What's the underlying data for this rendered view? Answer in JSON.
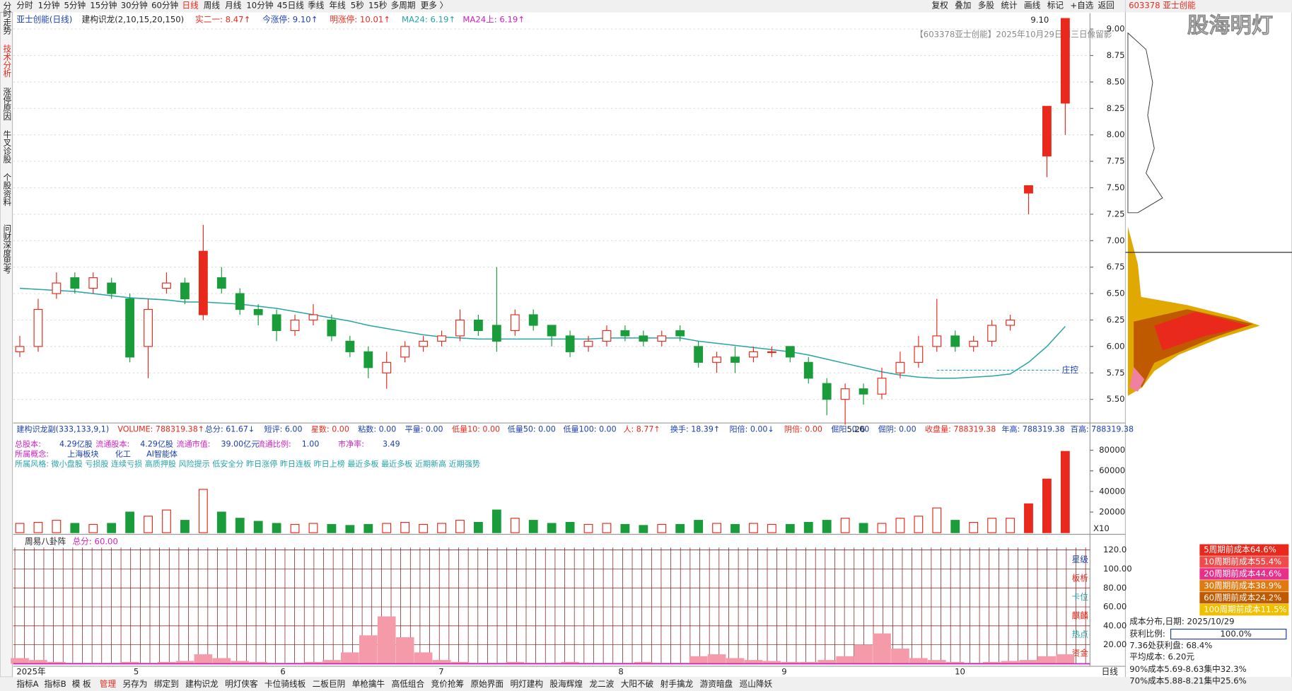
{
  "toolbar": [
    "分时",
    "1分钟",
    "5分钟",
    "15分钟",
    "30分钟",
    "60分钟",
    "日线",
    "周线",
    "月线",
    "10分钟",
    "45日线",
    "季线",
    "年线",
    "5秒",
    "15秒",
    "多周期",
    "更多 〉"
  ],
  "toolbar_right": [
    "复权",
    "叠加",
    "多股",
    "统计",
    "画线",
    "标记",
    "+自选",
    "返回"
  ],
  "stock": "603378 亚士创能",
  "brand": "股海明灯",
  "side_tabs": [
    "分时走势",
    "技术分析",
    "涨停原因",
    "牛叉诊股",
    "个股资料",
    "问财",
    "深度思考"
  ],
  "main_header": [
    "亚士创能(日线)",
    "建构识龙(2,10,15,20,150)",
    "实二一: 8.47↑",
    "今涨停: 9.10↑",
    "明涨停: 10.01↑",
    "MA24: 6.19↑",
    "MA24上: 6.19↑"
  ],
  "note": "【603378亚士创能】2025年10月29日周三日像留影",
  "chart_data": {
    "type": "candlestick",
    "ylim": [
      5.3,
      9.15
    ],
    "yticks": [
      {
        "value": 5.5,
        "label": "5.50"
      },
      {
        "value": 5.75,
        "label": "5.75"
      },
      {
        "value": 6,
        "label": "6.00"
      },
      {
        "value": 6.25,
        "label": "6.25"
      },
      {
        "value": 6.5,
        "label": "6.50"
      },
      {
        "value": 6.75,
        "label": "6.75"
      },
      {
        "value": 7,
        "label": "7.00"
      },
      {
        "value": 7.25,
        "label": "7.25"
      },
      {
        "value": 7.5,
        "label": "7.50"
      },
      {
        "value": 7.75,
        "label": "7.75"
      },
      {
        "value": 8,
        "label": "8.00"
      },
      {
        "value": 8.25,
        "label": "8.25"
      },
      {
        "value": 8.5,
        "label": "8.50"
      },
      {
        "value": 8.75,
        "label": "8.75"
      },
      {
        "value": 9,
        "label": "9.00"
      }
    ],
    "candles": [
      [
        5.95,
        6.1,
        5.9,
        6.0
      ],
      [
        6.0,
        6.45,
        5.95,
        6.35
      ],
      [
        6.5,
        6.7,
        6.45,
        6.6
      ],
      [
        6.65,
        6.7,
        6.5,
        6.55
      ],
      [
        6.55,
        6.7,
        6.5,
        6.65
      ],
      [
        6.6,
        6.65,
        6.45,
        6.5
      ],
      [
        6.45,
        6.5,
        5.85,
        5.9
      ],
      [
        6.0,
        6.45,
        5.7,
        6.35
      ],
      [
        6.55,
        6.7,
        6.5,
        6.6
      ],
      [
        6.6,
        6.65,
        6.4,
        6.45
      ],
      [
        6.3,
        7.15,
        6.25,
        6.9
      ],
      [
        6.65,
        6.75,
        6.5,
        6.55
      ],
      [
        6.5,
        6.55,
        6.3,
        6.35
      ],
      [
        6.35,
        6.4,
        6.2,
        6.3
      ],
      [
        6.3,
        6.35,
        6.05,
        6.15
      ],
      [
        6.15,
        6.3,
        6.1,
        6.25
      ],
      [
        6.25,
        6.4,
        6.2,
        6.3
      ],
      [
        6.25,
        6.3,
        6.05,
        6.1
      ],
      [
        6.05,
        6.1,
        5.9,
        5.95
      ],
      [
        5.95,
        6.0,
        5.7,
        5.8
      ],
      [
        5.75,
        5.95,
        5.6,
        5.85
      ],
      [
        5.9,
        6.05,
        5.85,
        6.0
      ],
      [
        6.0,
        6.1,
        5.95,
        6.05
      ],
      [
        6.05,
        6.15,
        6.0,
        6.1
      ],
      [
        6.1,
        6.35,
        6.05,
        6.25
      ],
      [
        6.25,
        6.3,
        6.1,
        6.15
      ],
      [
        6.2,
        6.75,
        5.95,
        6.05
      ],
      [
        6.15,
        6.35,
        6.1,
        6.3
      ],
      [
        6.3,
        6.35,
        6.15,
        6.2
      ],
      [
        6.2,
        6.2,
        6.0,
        6.1
      ],
      [
        6.1,
        6.15,
        5.9,
        5.95
      ],
      [
        6.0,
        6.1,
        5.95,
        6.05
      ],
      [
        6.05,
        6.2,
        6.0,
        6.15
      ],
      [
        6.15,
        6.2,
        6.05,
        6.1
      ],
      [
        6.1,
        6.15,
        6.0,
        6.05
      ],
      [
        6.05,
        6.15,
        6.0,
        6.1
      ],
      [
        6.15,
        6.2,
        6.05,
        6.1
      ],
      [
        6.0,
        6.05,
        5.8,
        5.85
      ],
      [
        5.85,
        5.95,
        5.75,
        5.9
      ],
      [
        5.9,
        6.0,
        5.75,
        5.85
      ],
      [
        5.9,
        6.0,
        5.85,
        5.95
      ],
      [
        5.95,
        6.0,
        5.9,
        5.95
      ],
      [
        6.0,
        6.0,
        5.85,
        5.9
      ],
      [
        5.85,
        5.9,
        5.65,
        5.7
      ],
      [
        5.65,
        5.7,
        5.35,
        5.5
      ],
      [
        5.5,
        5.65,
        5.26,
        5.6
      ],
      [
        5.6,
        5.65,
        5.45,
        5.55
      ],
      [
        5.55,
        5.8,
        5.5,
        5.7
      ],
      [
        5.75,
        5.95,
        5.7,
        5.85
      ],
      [
        5.85,
        6.1,
        5.8,
        6.0
      ],
      [
        6.0,
        6.45,
        5.95,
        6.1
      ],
      [
        6.1,
        6.15,
        5.95,
        6.0
      ],
      [
        6.0,
        6.1,
        5.95,
        6.05
      ],
      [
        6.05,
        6.25,
        6.0,
        6.2
      ],
      [
        6.2,
        6.3,
        6.15,
        6.25
      ],
      [
        7.45,
        7.52,
        7.25,
        7.52
      ],
      [
        7.8,
        8.27,
        7.6,
        8.27
      ],
      [
        8.3,
        9.1,
        8.0,
        9.1
      ]
    ],
    "ma24": {
      "name": "MA24",
      "color": "#26a4a8",
      "values": [
        6.55,
        6.54,
        6.53,
        6.52,
        6.5,
        6.48,
        6.46,
        6.45,
        6.44,
        6.42,
        6.42,
        6.41,
        6.4,
        6.38,
        6.36,
        6.33,
        6.3,
        6.27,
        6.24,
        6.2,
        6.17,
        6.14,
        6.11,
        6.09,
        6.08,
        6.07,
        6.07,
        6.07,
        6.07,
        6.07,
        6.07,
        6.07,
        6.08,
        6.08,
        6.08,
        6.08,
        6.08,
        6.05,
        6.03,
        6.01,
        5.99,
        5.97,
        5.95,
        5.92,
        5.88,
        5.84,
        5.8,
        5.76,
        5.73,
        5.71,
        5.7,
        5.7,
        5.71,
        5.72,
        5.74,
        5.85,
        6.0,
        6.19
      ]
    },
    "annotations": [
      "9.10",
      "5.26",
      "庄控"
    ],
    "volume_header": [
      "建构识龙副(333,133,9,1)",
      "VOLUME: 788319.38↑",
      "总分: 61.67↓",
      "短评: 6.00",
      "星数: 0.00",
      "粘数: 0.00",
      "平量: 0.00",
      "低量10: 0.00",
      "低量50: 0.00",
      "低量100: 0.00",
      "人: 8.77↑",
      "换手: 18.39↑",
      "阳倍: 0.00↓",
      "阴倍: 0.00",
      "倔阳: 0.00",
      "倔阴: 0.00",
      "收盘量: 788319.38",
      "年高: 788319.38",
      "百高: 788319.38"
    ],
    "info": [
      "总股本:",
      "4.29亿股",
      "流通股本:",
      "4.29亿股",
      "流通市值:",
      "39.00亿元",
      "流通比例:",
      "1.00",
      "市净率:",
      "3.49"
    ],
    "concept": [
      "所属概念:",
      "上海板块",
      "化工",
      "AI智能体"
    ],
    "style": "所属风格: 微小盘股 亏损股 连续亏损 高质押股 风险提示 低安全分 昨日涨停 昨日连板 昨日上榜 最近多板 最近多板 近期新高 近期强势",
    "volume": {
      "ylim": [
        0,
        80000
      ],
      "yticks": [
        20000,
        40000,
        60000,
        80000
      ],
      "unit": "X10",
      "values": [
        9000,
        10000,
        12000,
        9000,
        8000,
        9000,
        20000,
        16000,
        22000,
        12000,
        42000,
        20000,
        14000,
        11000,
        9000,
        8000,
        9000,
        8000,
        7000,
        8000,
        9000,
        10000,
        8000,
        9000,
        12000,
        10000,
        22000,
        14000,
        12000,
        9000,
        10000,
        8000,
        9000,
        8000,
        7000,
        8000,
        8000,
        12000,
        9000,
        8000,
        9000,
        8000,
        8000,
        10000,
        12000,
        14000,
        9000,
        9000,
        14000,
        16000,
        24000,
        12000,
        10000,
        14000,
        14000,
        28000,
        52000,
        78832
      ]
    },
    "indicator": {
      "title": "周易八卦阵",
      "score": "总分: 60.00",
      "ylim": [
        0,
        120
      ],
      "yticks": [
        {
          "value": 20,
          "label": "20.00"
        },
        {
          "value": 40,
          "label": "40.00"
        },
        {
          "value": 60,
          "label": "60.00"
        },
        {
          "value": 80,
          "label": "80.00"
        },
        {
          "value": 100,
          "label": "100.00"
        },
        {
          "value": 120,
          "label": "120.0"
        }
      ],
      "labels": [
        "星级",
        "板析",
        "卡位",
        "麒麟",
        "热点",
        "资金"
      ],
      "values": [
        6,
        4,
        2,
        1,
        1,
        1,
        2,
        1,
        2,
        3,
        10,
        6,
        3,
        2,
        1,
        1,
        2,
        4,
        12,
        30,
        50,
        28,
        12,
        4,
        2,
        1,
        1,
        2,
        1,
        1,
        2,
        1,
        1,
        1,
        2,
        1,
        1,
        8,
        10,
        6,
        4,
        3,
        2,
        2,
        4,
        8,
        20,
        32,
        16,
        6,
        4,
        2,
        1,
        2,
        3,
        4,
        8,
        10
      ]
    },
    "xaxis": [
      "2025年",
      "5",
      "6",
      "7",
      "8",
      "9",
      "10"
    ]
  },
  "bottom_tabs": [
    "指标A",
    "指标B",
    "模 板",
    "管理",
    "另存为",
    "绑定到",
    "建构识龙",
    "明灯侠客",
    "卡位骑线板",
    "二板巨阴",
    "单枪擒牛",
    "高低组合",
    "竞价抢筹",
    "原始界面",
    "明灯建构",
    "股海辉煌",
    "龙二波",
    "大阳不破",
    "射手擒龙",
    "游资暗盘",
    "巡山降妖"
  ],
  "bottom_right": "日线",
  "cost_legend": [
    "5周期前成本64.6%",
    "10周期前成本55.4%",
    "20周期前成本44.6%",
    "30周期前成本38.9%",
    "60周期前成本24.2%",
    "100周期前成本11.5%"
  ],
  "cost_info": [
    "成本分布,日期: 2025/10/29",
    "获利比例:",
    "100.0%",
    "7.36处获利盘: 68.4%",
    "平均成本: 6.20元",
    "90%成本5.69-8.63集中32.3%",
    "70%成本5.88-8.21集中25.6%"
  ]
}
